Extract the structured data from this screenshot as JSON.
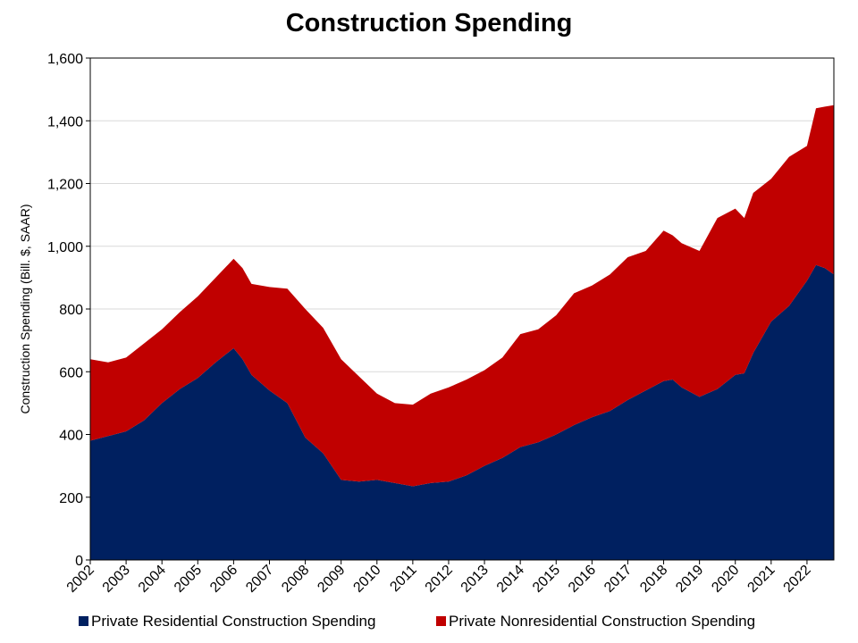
{
  "chart_data": {
    "type": "area",
    "stacked": true,
    "title": "Construction Spending",
    "xlabel": "",
    "ylabel": "Construction Spending (Bill. $, SAAR)",
    "ylim": [
      0,
      1600
    ],
    "yticks": [
      0,
      200,
      400,
      600,
      800,
      1000,
      1200,
      1400,
      1600
    ],
    "ytick_labels": [
      "0",
      "200",
      "400",
      "600",
      "800",
      "1,000",
      "1,200",
      "1,400",
      "1,600"
    ],
    "xlim": [
      2002,
      2022.75
    ],
    "xticks": [
      2002,
      2003,
      2004,
      2005,
      2006,
      2007,
      2008,
      2009,
      2010,
      2011,
      2012,
      2013,
      2014,
      2015,
      2016,
      2017,
      2018,
      2019,
      2020,
      2021,
      2022
    ],
    "xtick_labels": [
      "2002",
      "2003",
      "2004",
      "2005",
      "2006",
      "2007",
      "2008",
      "2009",
      "2010",
      "2011",
      "2012",
      "2013",
      "2014",
      "2015",
      "2016",
      "2017",
      "2018",
      "2019",
      "2020",
      "2021",
      "2022"
    ],
    "grid": true,
    "legend_position": "bottom",
    "x": [
      2002.0,
      2002.5,
      2003.0,
      2003.5,
      2004.0,
      2004.5,
      2005.0,
      2005.5,
      2006.0,
      2006.25,
      2006.5,
      2007.0,
      2007.5,
      2008.0,
      2008.5,
      2009.0,
      2009.5,
      2010.0,
      2010.5,
      2011.0,
      2011.5,
      2012.0,
      2012.5,
      2013.0,
      2013.5,
      2014.0,
      2014.5,
      2015.0,
      2015.5,
      2016.0,
      2016.5,
      2017.0,
      2017.5,
      2018.0,
      2018.25,
      2018.5,
      2019.0,
      2019.5,
      2020.0,
      2020.25,
      2020.5,
      2021.0,
      2021.5,
      2022.0,
      2022.25,
      2022.5,
      2022.75
    ],
    "series": [
      {
        "name": "Private Residential Construction Spending",
        "color": "#002060",
        "values": [
          380,
          395,
          410,
          445,
          500,
          545,
          580,
          630,
          675,
          640,
          590,
          540,
          500,
          390,
          340,
          255,
          250,
          255,
          245,
          235,
          245,
          250,
          270,
          300,
          325,
          360,
          375,
          400,
          430,
          455,
          475,
          510,
          540,
          570,
          575,
          550,
          520,
          545,
          590,
          595,
          660,
          760,
          810,
          890,
          940,
          930,
          910
        ]
      },
      {
        "name": "Private Nonresidential Construction Spending",
        "color": "#C00000",
        "values": [
          260,
          235,
          235,
          245,
          235,
          245,
          260,
          270,
          285,
          290,
          290,
          330,
          365,
          410,
          400,
          385,
          335,
          275,
          255,
          260,
          285,
          300,
          305,
          305,
          320,
          360,
          360,
          380,
          420,
          420,
          435,
          455,
          445,
          480,
          460,
          460,
          465,
          545,
          530,
          495,
          510,
          455,
          475,
          430,
          500,
          515,
          540
        ]
      }
    ]
  }
}
